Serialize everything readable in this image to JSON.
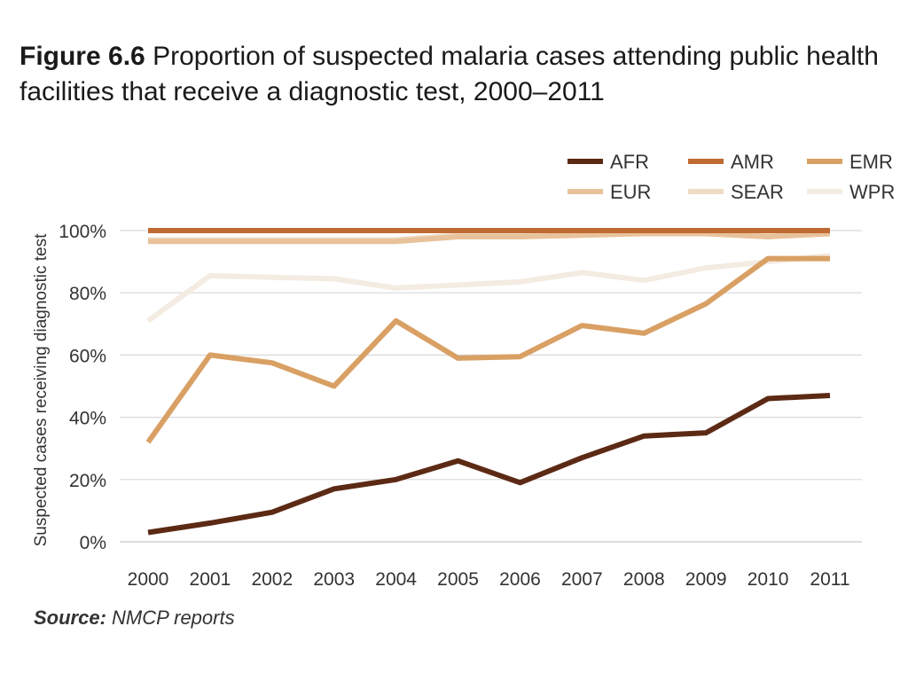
{
  "title": {
    "figure_label": "Figure 6.6",
    "text": "Proportion of suspected malaria cases attending public health facilities that receive a diagnostic test, 2000–2011"
  },
  "source": {
    "label": "Source:",
    "text": "NMCP reports"
  },
  "chart_data": {
    "type": "line",
    "title": "Figure 6.6 Proportion of suspected malaria cases attending public health facilities that receive a diagnostic test, 2000–2011",
    "ylabel": "Suspected cases receiving diagnostic test",
    "xlabel": "",
    "ylim": [
      0,
      100
    ],
    "yticks": [
      "0%",
      "20%",
      "40%",
      "60%",
      "80%",
      "100%"
    ],
    "ytick_values": [
      0,
      20,
      40,
      60,
      80,
      100
    ],
    "x": [
      "2000",
      "2001",
      "2002",
      "2003",
      "2004",
      "2005",
      "2006",
      "2007",
      "2008",
      "2009",
      "2010",
      "2011"
    ],
    "grid": "horizontal",
    "legend_position": "top-right",
    "series": [
      {
        "name": "AFR",
        "color": "#5c2a14",
        "values": [
          3,
          6,
          9.5,
          17,
          20,
          26,
          19,
          27,
          34,
          35,
          46,
          47
        ]
      },
      {
        "name": "AMR",
        "color": "#c06a33",
        "values": [
          100,
          100,
          100,
          100,
          100,
          100,
          100,
          100,
          100,
          100,
          100,
          100
        ]
      },
      {
        "name": "EMR",
        "color": "#d9a064",
        "values": [
          32,
          60,
          57.5,
          50,
          71,
          59,
          59.5,
          69.5,
          67,
          76.5,
          91,
          91
        ]
      },
      {
        "name": "EUR",
        "color": "#e8c29a",
        "values": [
          96.5,
          96.5,
          96.5,
          96.5,
          96.5,
          98,
          98,
          98.5,
          99,
          99,
          98,
          99
        ]
      },
      {
        "name": "SEAR",
        "color": "#f0dcc6",
        "values": [
          97,
          97,
          97,
          97,
          97,
          98.5,
          98.5,
          99,
          99,
          99,
          98.5,
          99
        ]
      },
      {
        "name": "WPR",
        "color": "#f4ebe2",
        "values": [
          71,
          85.5,
          85,
          84.5,
          81.5,
          82.5,
          83.5,
          86.5,
          84,
          88,
          90,
          92
        ]
      }
    ]
  }
}
